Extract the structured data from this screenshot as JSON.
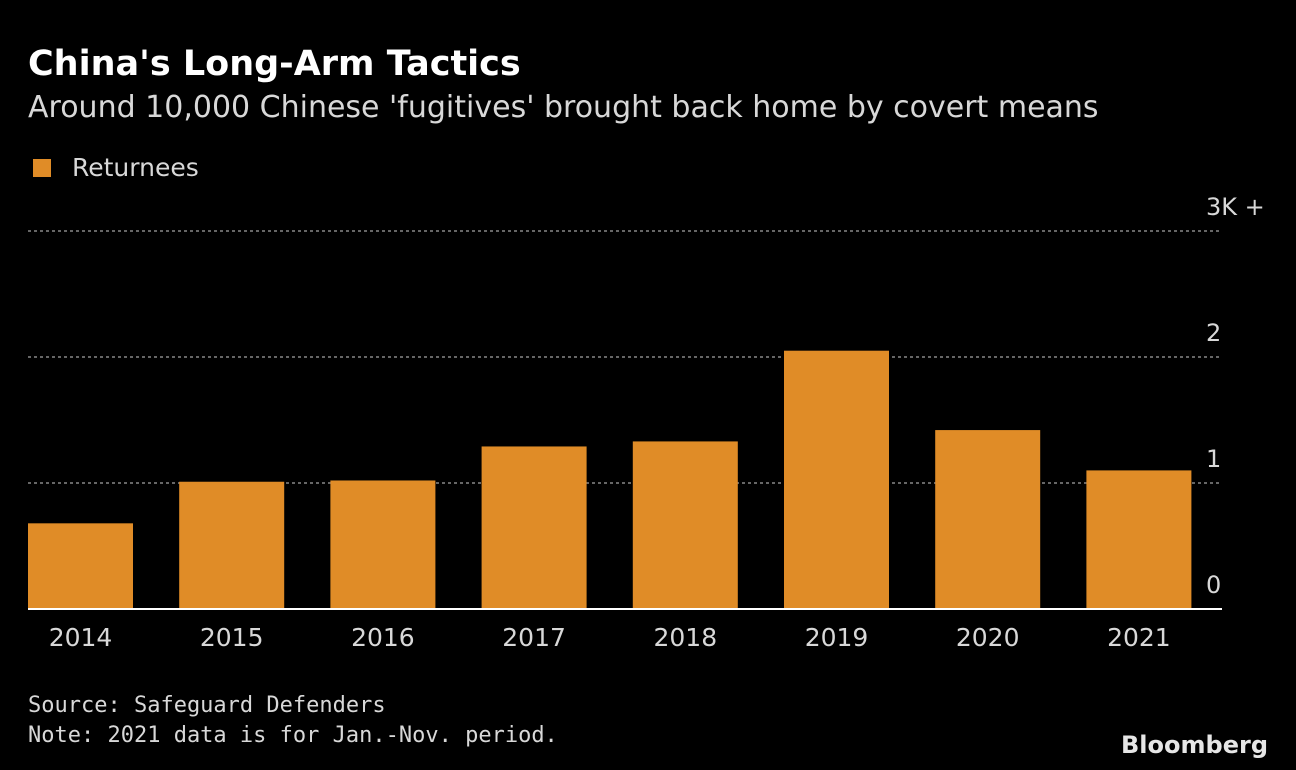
{
  "chart_data": {
    "type": "bar",
    "title": "China's Long-Arm Tactics",
    "subtitle": "Around 10,000 Chinese 'fugitives' brought back home by covert means",
    "categories": [
      "2014",
      "2015",
      "2016",
      "2017",
      "2018",
      "2019",
      "2020",
      "2021"
    ],
    "series": [
      {
        "name": "Returnees",
        "color": "#e08c27",
        "values": [
          0.68,
          1.01,
          1.02,
          1.29,
          1.33,
          2.05,
          1.42,
          1.1
        ]
      }
    ],
    "ylim": [
      0,
      3
    ],
    "yticks": [
      0,
      1,
      2,
      {
        "value": 3,
        "label": "3K +"
      }
    ],
    "grid": true,
    "legend": "top-left",
    "source": "Source: Safeguard Defenders",
    "note": "Note: 2021 data is for Jan.-Nov. period.",
    "brand": "Bloomberg"
  }
}
